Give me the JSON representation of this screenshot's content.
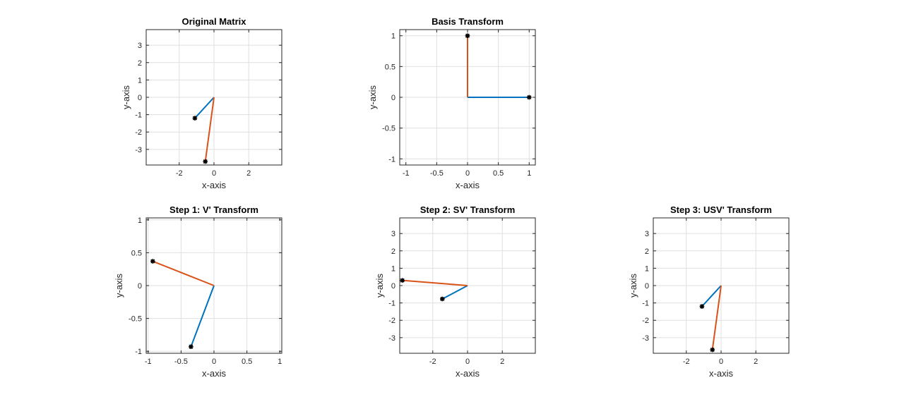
{
  "chart_data": [
    {
      "type": "line",
      "title": "Original Matrix",
      "xlabel": "x-axis",
      "ylabel": "y-axis",
      "xlim": [
        -3.9,
        3.9
      ],
      "ylim": [
        -3.9,
        3.9
      ],
      "xticks": [
        -2,
        0,
        2
      ],
      "yticks": [
        -3,
        -2,
        -1,
        0,
        1,
        2,
        3
      ],
      "grid": true,
      "series": [
        {
          "color": "#0072BD",
          "x": [
            0,
            -1.1
          ],
          "y": [
            0,
            -1.2
          ]
        },
        {
          "color": "#D95319",
          "x": [
            0,
            -0.5
          ],
          "y": [
            0,
            -3.7
          ]
        }
      ]
    },
    {
      "type": "line",
      "title": "Basis Transform",
      "xlabel": "x-axis",
      "ylabel": "y-axis",
      "xlim": [
        -1.1,
        1.1
      ],
      "ylim": [
        -1.1,
        1.1
      ],
      "xticks": [
        -1,
        -0.5,
        0,
        0.5,
        1
      ],
      "yticks": [
        -1,
        -0.5,
        0,
        0.5,
        1
      ],
      "grid": true,
      "series": [
        {
          "color": "#0072BD",
          "x": [
            0,
            1
          ],
          "y": [
            0,
            0
          ]
        },
        {
          "color": "#D95319",
          "x": [
            0,
            0
          ],
          "y": [
            0,
            1
          ]
        }
      ]
    },
    {
      "type": "line",
      "title": "Step 1: V' Transform",
      "xlabel": "x-axis",
      "ylabel": "y-axis",
      "xlim": [
        -1.03,
        1.03
      ],
      "ylim": [
        -1.03,
        1.03
      ],
      "xticks": [
        -1,
        -0.5,
        0,
        0.5,
        1
      ],
      "yticks": [
        -1,
        -0.5,
        0,
        0.5,
        1
      ],
      "grid": true,
      "series": [
        {
          "color": "#0072BD",
          "x": [
            0,
            -0.35
          ],
          "y": [
            0,
            -0.93
          ]
        },
        {
          "color": "#D95319",
          "x": [
            0,
            -0.93
          ],
          "y": [
            0,
            0.37
          ]
        }
      ]
    },
    {
      "type": "line",
      "title": "Step 2: SV' Transform",
      "xlabel": "x-axis",
      "ylabel": "y-axis",
      "xlim": [
        -3.9,
        3.9
      ],
      "ylim": [
        -3.9,
        3.9
      ],
      "xticks": [
        -2,
        0,
        2
      ],
      "yticks": [
        -3,
        -2,
        -1,
        0,
        1,
        2,
        3
      ],
      "grid": true,
      "series": [
        {
          "color": "#0072BD",
          "x": [
            0,
            -1.45
          ],
          "y": [
            0,
            -0.77
          ]
        },
        {
          "color": "#D95319",
          "x": [
            0,
            -3.75
          ],
          "y": [
            0,
            0.3
          ]
        }
      ]
    },
    {
      "type": "line",
      "title": "Step 3: USV' Transform",
      "xlabel": "x-axis",
      "ylabel": "y-axis",
      "xlim": [
        -3.9,
        3.9
      ],
      "ylim": [
        -3.9,
        3.9
      ],
      "xticks": [
        -2,
        0,
        2
      ],
      "yticks": [
        -3,
        -2,
        -1,
        0,
        1,
        2,
        3
      ],
      "grid": true,
      "series": [
        {
          "color": "#0072BD",
          "x": [
            0,
            -1.1
          ],
          "y": [
            0,
            -1.2
          ]
        },
        {
          "color": "#D95319",
          "x": [
            0,
            -0.5
          ],
          "y": [
            0,
            -3.7
          ]
        }
      ]
    }
  ]
}
